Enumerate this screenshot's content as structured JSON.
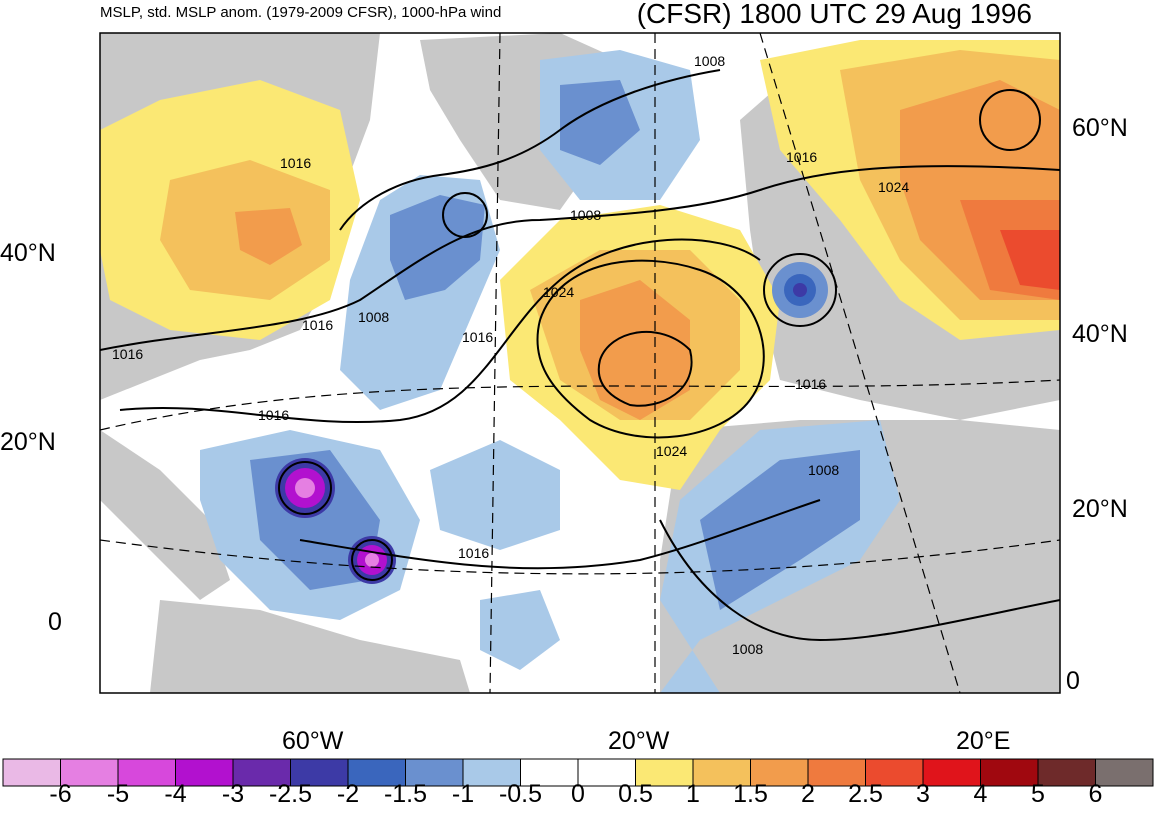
{
  "header": {
    "left_title": "MSLP, std. MSLP anom. (1979-2009 CFSR), 1000-hPa wind",
    "right_title": "(CFSR) 1800 UTC 29 Aug 1996"
  },
  "axes": {
    "left_lat_labels": [
      "40°N",
      "20°N",
      "0"
    ],
    "right_lat_labels": [
      "60°N",
      "40°N",
      "20°N",
      "0"
    ],
    "lon_labels": [
      "60°W",
      "20°W",
      "20°E"
    ]
  },
  "isobar_labels": [
    "1016",
    "1016",
    "1016",
    "1016",
    "1016",
    "1016",
    "1016",
    "1016",
    "1008",
    "1008",
    "1008",
    "1008",
    "1008",
    "1024",
    "1024",
    "1024"
  ],
  "colorbar": {
    "labels": [
      "-6",
      "-5",
      "-4",
      "-3",
      "-2.5",
      "-2",
      "-1.5",
      "-1",
      "-0.5",
      "0",
      "0.5",
      "1",
      "1.5",
      "2",
      "2.5",
      "3",
      "4",
      "5",
      "6"
    ],
    "colors": [
      "#eab9e6",
      "#e57fe2",
      "#d748dc",
      "#b211cf",
      "#6a2aab",
      "#3d3aa6",
      "#3a66bd",
      "#6a90cf",
      "#a9c9e8",
      "#ffffff",
      "#ffffff",
      "#fbe874",
      "#f4c15c",
      "#f29c4c",
      "#ef7a3e",
      "#eb4b2e",
      "#e0141b",
      "#a0080f",
      "#6e2a2a",
      "#7a6f6e"
    ]
  },
  "colors": {
    "land": "#c8c8c8",
    "ocean": "#ffffff"
  }
}
